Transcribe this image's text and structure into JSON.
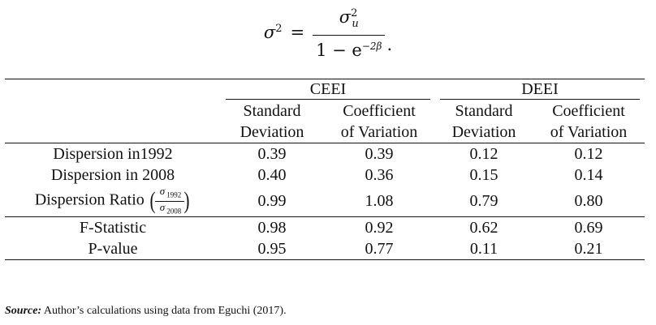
{
  "equation": {
    "lhs": "σ",
    "lhs_power": "2",
    "equals": "=",
    "numerator": "σ",
    "numerator_power": "2",
    "numerator_sub": "u",
    "denominator_base": "1 − e",
    "denominator_power": "−2β",
    "period": "."
  },
  "table": {
    "groups": [
      "CEEI",
      "DEEI"
    ],
    "sub_headers": [
      {
        "line1": "Standard",
        "line2": "Deviation"
      },
      {
        "line1": "Coefficient",
        "line2": "of Variation"
      },
      {
        "line1": "Standard",
        "line2": "Deviation"
      },
      {
        "line1": "Coefficient",
        "line2": "of Variation"
      }
    ],
    "rows": [
      {
        "label": "Dispersion in1992",
        "values": [
          "0.39",
          "0.39",
          "0.12",
          "0.12"
        ]
      },
      {
        "label": "Dispersion in 2008",
        "values": [
          "0.40",
          "0.36",
          "0.15",
          "0.14"
        ]
      },
      {
        "label": "Dispersion Ratio",
        "ratio_num": "σ",
        "ratio_num_sub": "1992",
        "ratio_den": "σ",
        "ratio_den_sub": "2008",
        "values": [
          "0.99",
          "1.08",
          "0.79",
          "0.80"
        ]
      },
      {
        "label": "F-Statistic",
        "values": [
          "0.98",
          "0.92",
          "0.62",
          "0.69"
        ]
      },
      {
        "label": "P-value",
        "values": [
          "0.95",
          "0.77",
          "0.11",
          "0.21"
        ]
      }
    ]
  },
  "source": {
    "label": "Source:",
    "text": " Author’s calculations using data from Eguchi (2017)."
  }
}
